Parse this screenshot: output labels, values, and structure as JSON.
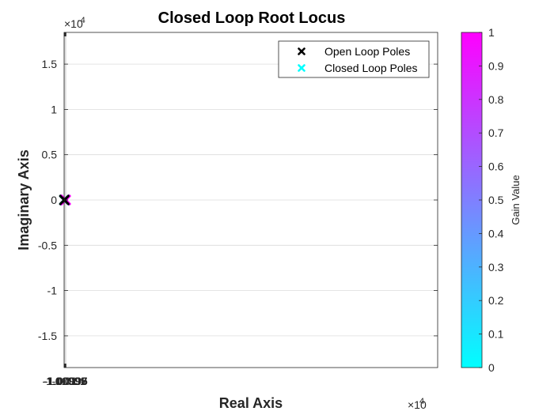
{
  "chart_data": {
    "type": "scatter",
    "title": "Closed Loop Root Locus",
    "xlabel": "Real Axis",
    "ylabel": "Imaginary Axis",
    "x_multiplier_label": "×10",
    "x_multiplier_exp": "4",
    "y_multiplier_label": "×10",
    "y_multiplier_exp": "-4",
    "xlim": [
      -1.010012,
      -0.999596
    ],
    "ylim": [
      -1.85,
      1.85
    ],
    "xticks": [
      -1.01001,
      -1.01,
      -1.00999,
      -1.00998,
      -1.00997,
      -1.00996
    ],
    "xtick_labels": [
      "-1.01001",
      "-1.01",
      "-1.00999",
      "-1.00998",
      "-1.00997",
      "-1.00996"
    ],
    "yticks": [
      1.5,
      1,
      0.5,
      0,
      -0.5,
      -1,
      -1.5
    ],
    "ytick_labels": [
      "1.5",
      "1",
      "0.5",
      "0",
      "-0.5",
      "-1",
      "-1.5"
    ],
    "grid": true,
    "legend_position": "top-right",
    "series": [
      {
        "name": "Open Loop Poles",
        "marker": "x",
        "color": "#000000",
        "points": [
          {
            "x": -1.0100061,
            "y": 0
          }
        ]
      },
      {
        "name": "Closed Loop Poles",
        "marker": "x",
        "color": "#00ffff",
        "x_start": -1.0100061,
        "x_end": -1.0099673,
        "y": 0,
        "gain_start": 0,
        "gain_end": 1,
        "count": 60
      }
    ],
    "colorbar": {
      "label": "Gain Value",
      "range": [
        0,
        1
      ],
      "ticks": [
        "0",
        "0.1",
        "0.2",
        "0.3",
        "0.4",
        "0.5",
        "0.6",
        "0.7",
        "0.8",
        "0.9",
        "1"
      ],
      "color_low": "#00ffff",
      "color_high": "#ff00ff"
    }
  }
}
